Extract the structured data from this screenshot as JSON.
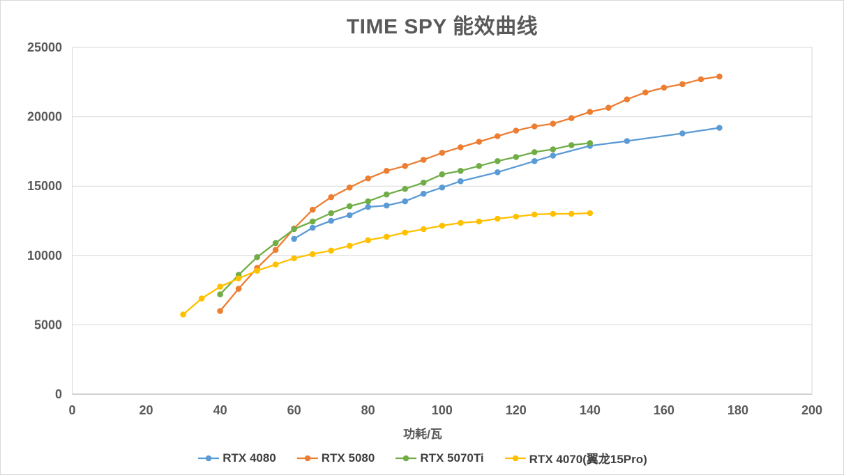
{
  "chart_data": {
    "type": "line",
    "title": "TIME SPY 能效曲线",
    "xlabel": "功耗/瓦",
    "ylabel": "",
    "xlim": [
      0,
      200
    ],
    "ylim": [
      0,
      25000
    ],
    "xticks": [
      0,
      20,
      40,
      60,
      80,
      100,
      120,
      140,
      160,
      180,
      200
    ],
    "yticks": [
      0,
      5000,
      10000,
      15000,
      20000,
      25000
    ],
    "grid": "horizontal",
    "legend_position": "bottom",
    "series": [
      {
        "name": "RTX 4080",
        "color": "#5B9BD5",
        "points": [
          [
            60,
            11200
          ],
          [
            65,
            12000
          ],
          [
            70,
            12500
          ],
          [
            75,
            12900
          ],
          [
            80,
            13500
          ],
          [
            85,
            13600
          ],
          [
            90,
            13900
          ],
          [
            95,
            14450
          ],
          [
            100,
            14900
          ],
          [
            105,
            15350
          ],
          [
            115,
            16000
          ],
          [
            125,
            16800
          ],
          [
            130,
            17200
          ],
          [
            140,
            17900
          ],
          [
            150,
            18250
          ],
          [
            165,
            18800
          ],
          [
            175,
            19200
          ]
        ]
      },
      {
        "name": "RTX 5080",
        "color": "#ED7D31",
        "points": [
          [
            40,
            6000
          ],
          [
            45,
            7600
          ],
          [
            50,
            9100
          ],
          [
            55,
            10400
          ],
          [
            60,
            11950
          ],
          [
            65,
            13300
          ],
          [
            70,
            14200
          ],
          [
            75,
            14900
          ],
          [
            80,
            15550
          ],
          [
            85,
            16100
          ],
          [
            90,
            16450
          ],
          [
            95,
            16900
          ],
          [
            100,
            17400
          ],
          [
            105,
            17800
          ],
          [
            110,
            18200
          ],
          [
            115,
            18600
          ],
          [
            120,
            19000
          ],
          [
            125,
            19300
          ],
          [
            130,
            19500
          ],
          [
            135,
            19900
          ],
          [
            140,
            20350
          ],
          [
            145,
            20650
          ],
          [
            150,
            21250
          ],
          [
            155,
            21750
          ],
          [
            160,
            22100
          ],
          [
            165,
            22350
          ],
          [
            170,
            22700
          ],
          [
            175,
            22900
          ]
        ]
      },
      {
        "name": "RTX 5070Ti",
        "color": "#70AD47",
        "points": [
          [
            40,
            7200
          ],
          [
            45,
            8600
          ],
          [
            50,
            9880
          ],
          [
            55,
            10900
          ],
          [
            60,
            11900
          ],
          [
            65,
            12450
          ],
          [
            70,
            13050
          ],
          [
            75,
            13550
          ],
          [
            80,
            13900
          ],
          [
            85,
            14400
          ],
          [
            90,
            14800
          ],
          [
            95,
            15250
          ],
          [
            100,
            15850
          ],
          [
            105,
            16100
          ],
          [
            110,
            16450
          ],
          [
            115,
            16800
          ],
          [
            120,
            17100
          ],
          [
            125,
            17450
          ],
          [
            130,
            17650
          ],
          [
            135,
            17950
          ],
          [
            140,
            18100
          ]
        ]
      },
      {
        "name": "RTX 4070(翼龙15Pro)",
        "color": "#FFC000",
        "points": [
          [
            30,
            5750
          ],
          [
            35,
            6900
          ],
          [
            40,
            7750
          ],
          [
            45,
            8350
          ],
          [
            50,
            8900
          ],
          [
            55,
            9350
          ],
          [
            60,
            9800
          ],
          [
            65,
            10100
          ],
          [
            70,
            10350
          ],
          [
            75,
            10700
          ],
          [
            80,
            11100
          ],
          [
            85,
            11350
          ],
          [
            90,
            11650
          ],
          [
            95,
            11900
          ],
          [
            100,
            12150
          ],
          [
            105,
            12350
          ],
          [
            110,
            12450
          ],
          [
            115,
            12650
          ],
          [
            120,
            12800
          ],
          [
            125,
            12950
          ],
          [
            130,
            13000
          ],
          [
            135,
            13000
          ],
          [
            140,
            13050
          ]
        ]
      }
    ]
  },
  "colors": {
    "title_text": "#595959",
    "tick_text": "#595959",
    "legend_text": "#404040",
    "gridline": "#D9D9D9",
    "axis_line": "#BFBFBF",
    "background": "#FFFFFF"
  }
}
